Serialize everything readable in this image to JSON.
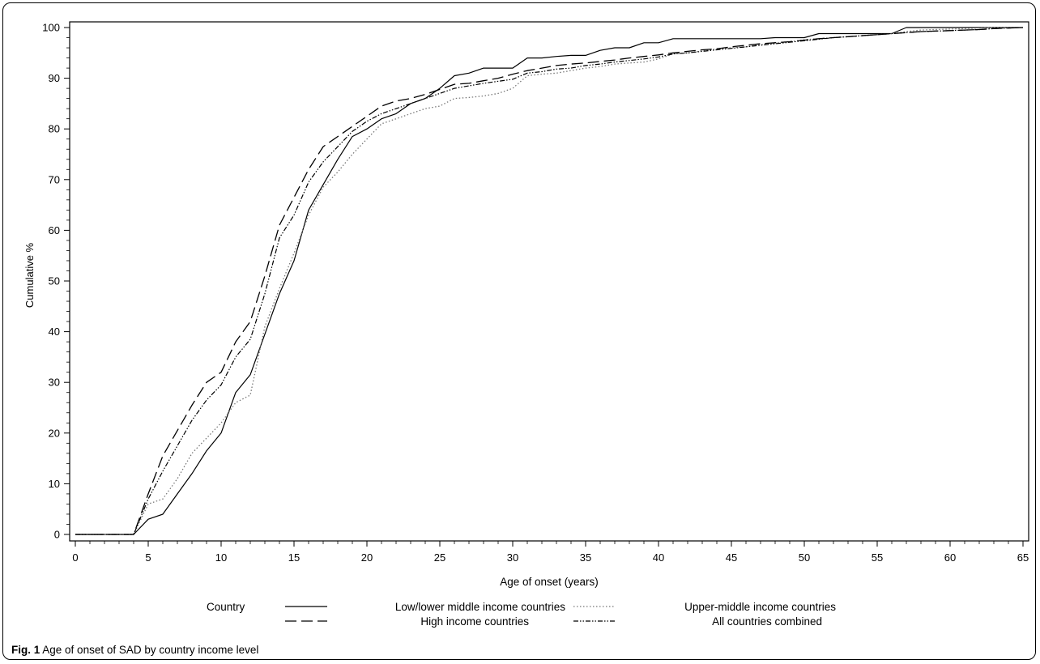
{
  "figure": {
    "label": "Fig. 1",
    "caption": "Age of onset of SAD by country income level"
  },
  "chart_data": {
    "type": "line",
    "title": "",
    "xlabel": "Age of onset (years)",
    "ylabel": "Cumulative %",
    "xlim": [
      0,
      65
    ],
    "ylim": [
      0,
      100
    ],
    "x_ticks": [
      "0",
      "5",
      "10",
      "15",
      "20",
      "25",
      "30",
      "35",
      "40",
      "45",
      "50",
      "55",
      "60",
      "65"
    ],
    "y_ticks": [
      "0",
      "10",
      "20",
      "30",
      "40",
      "50",
      "60",
      "70",
      "80",
      "90",
      "100"
    ],
    "grid": false,
    "legend": {
      "title": "Country",
      "position": "bottom"
    },
    "series": [
      {
        "name": "Low/lower middle income countries",
        "style": "solid",
        "x": [
          0,
          4,
          5,
          6,
          7,
          8,
          9,
          10,
          11,
          12,
          13,
          14,
          15,
          16,
          17,
          18,
          19,
          20,
          21,
          22,
          23,
          24,
          25,
          26,
          27,
          28,
          29,
          30,
          31,
          32,
          33,
          34,
          35,
          36,
          37,
          38,
          39,
          40,
          41,
          42,
          43,
          44,
          45,
          46,
          47,
          48,
          49,
          50,
          51,
          52,
          53,
          54,
          55,
          56,
          57,
          58,
          59,
          60,
          61,
          62,
          63,
          64,
          65
        ],
        "y": [
          0,
          0,
          3,
          4,
          8,
          12,
          16.5,
          20,
          28,
          31.5,
          39.5,
          47.5,
          54,
          64,
          69,
          74,
          78.5,
          80,
          82,
          83,
          85,
          86,
          88,
          90.5,
          91,
          92,
          92,
          92,
          94,
          94,
          94.3,
          94.5,
          94.5,
          95.5,
          96,
          96,
          97,
          97,
          97.8,
          97.8,
          97.8,
          97.8,
          97.8,
          97.8,
          97.8,
          98,
          98,
          98,
          98.8,
          98.8,
          98.8,
          98.8,
          98.8,
          98.8,
          100,
          100,
          100,
          100,
          100,
          100,
          100,
          100,
          100
        ]
      },
      {
        "name": "Upper-middle income countries",
        "style": "dotted",
        "x": [
          0,
          4,
          5,
          6,
          7,
          8,
          9,
          10,
          11,
          12,
          13,
          14,
          15,
          16,
          17,
          18,
          19,
          20,
          21,
          22,
          23,
          24,
          25,
          26,
          27,
          28,
          29,
          30,
          31,
          32,
          33,
          34,
          35,
          36,
          37,
          38,
          39,
          40,
          41,
          42,
          43,
          44,
          45,
          46,
          47,
          48,
          49,
          50,
          51,
          52,
          53,
          54,
          55,
          56,
          57,
          58,
          59,
          60,
          61,
          62,
          63,
          64,
          65
        ],
        "y": [
          0,
          0,
          6,
          7,
          11,
          16,
          19,
          22,
          26,
          27.5,
          41,
          48.5,
          55.5,
          63,
          68.5,
          71.5,
          75,
          78,
          81,
          82,
          83,
          84,
          84.5,
          86,
          86.2,
          86.5,
          87,
          88,
          90.5,
          90.8,
          91,
          91.5,
          92,
          92.3,
          92.8,
          93,
          93.2,
          93.8,
          94.8,
          95,
          95.4,
          95.8,
          96,
          96.2,
          96.6,
          97,
          97.2,
          97.6,
          97.8,
          98,
          98.2,
          98.4,
          98.6,
          98.8,
          99.2,
          99.5,
          99.6,
          99.7,
          99.8,
          99.9,
          100,
          100,
          100
        ]
      },
      {
        "name": "High income countries",
        "style": "dashed",
        "x": [
          0,
          4,
          5,
          6,
          7,
          8,
          9,
          10,
          11,
          12,
          13,
          14,
          15,
          16,
          17,
          18,
          19,
          20,
          21,
          22,
          23,
          24,
          25,
          26,
          27,
          28,
          29,
          30,
          31,
          32,
          33,
          34,
          35,
          36,
          37,
          38,
          39,
          40,
          41,
          42,
          43,
          44,
          45,
          46,
          47,
          48,
          49,
          50,
          51,
          52,
          53,
          54,
          55,
          56,
          57,
          58,
          59,
          60,
          61,
          62,
          63,
          64,
          65
        ],
        "y": [
          0,
          0,
          8,
          15.5,
          20.5,
          25.5,
          30,
          32,
          38,
          42,
          51,
          61,
          66.5,
          72,
          76.5,
          78.5,
          80.5,
          82.5,
          84.5,
          85.5,
          86,
          86.8,
          87.8,
          88.8,
          89,
          89.5,
          90,
          90.8,
          91.5,
          92,
          92.5,
          92.8,
          93,
          93.3,
          93.6,
          94,
          94.3,
          94.6,
          95,
          95.3,
          95.6,
          95.8,
          96.2,
          96.5,
          96.8,
          97,
          97.2,
          97.5,
          97.8,
          98,
          98.2,
          98.4,
          98.6,
          98.8,
          99,
          99.2,
          99.3,
          99.4,
          99.5,
          99.6,
          99.8,
          99.9,
          100
        ]
      },
      {
        "name": "All countries combined",
        "style": "dashdot",
        "x": [
          0,
          4,
          5,
          6,
          7,
          8,
          9,
          10,
          11,
          12,
          13,
          14,
          15,
          16,
          17,
          18,
          19,
          20,
          21,
          22,
          23,
          24,
          25,
          26,
          27,
          28,
          29,
          30,
          31,
          32,
          33,
          34,
          35,
          36,
          37,
          38,
          39,
          40,
          41,
          42,
          43,
          44,
          45,
          46,
          47,
          48,
          49,
          50,
          51,
          52,
          53,
          54,
          55,
          56,
          57,
          58,
          59,
          60,
          61,
          62,
          63,
          64,
          65
        ],
        "y": [
          0,
          0,
          7,
          12.5,
          17.5,
          22.5,
          26.5,
          29.5,
          35,
          38.5,
          47.5,
          58.5,
          63,
          69.5,
          73.5,
          76.5,
          79.5,
          81.5,
          83,
          84,
          85,
          86,
          87,
          88,
          88.5,
          89,
          89.4,
          89.8,
          91,
          91.3,
          91.8,
          92,
          92.5,
          92.8,
          93.2,
          93.5,
          93.8,
          94.2,
          94.8,
          95,
          95.3,
          95.6,
          95.9,
          96.2,
          96.5,
          96.8,
          97.1,
          97.4,
          97.7,
          98,
          98.2,
          98.4,
          98.6,
          98.8,
          99,
          99.2,
          99.3,
          99.4,
          99.5,
          99.6,
          99.8,
          99.9,
          100
        ]
      }
    ]
  }
}
